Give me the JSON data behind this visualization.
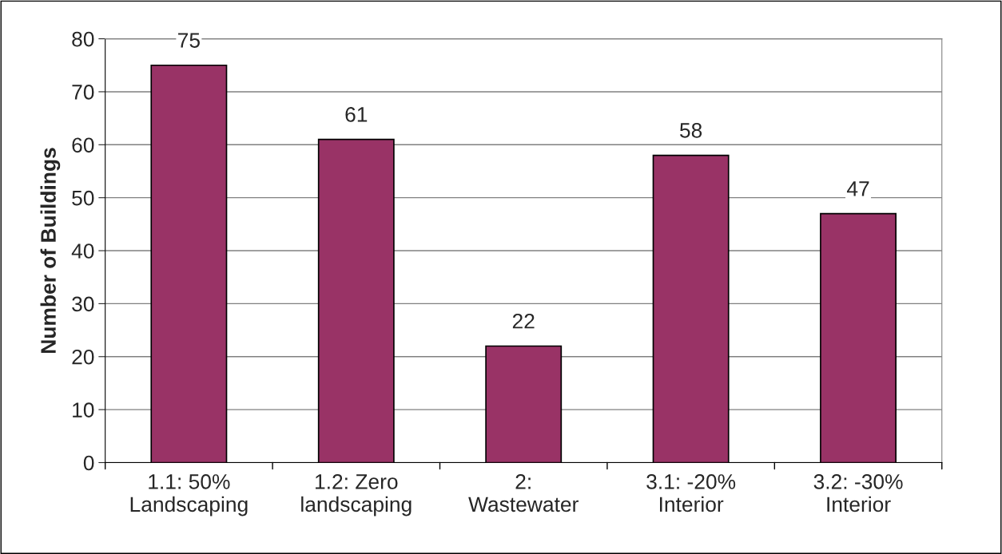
{
  "chart_data": {
    "type": "bar",
    "ylabel": "Number of Buildings",
    "categories": [
      "1.1: 50%\nLandscaping",
      "1.2: Zero\nlandscaping",
      "2:\nWastewater",
      "3.1: -20%\nInterior",
      "3.2: -30%\nInterior"
    ],
    "values": [
      75,
      61,
      22,
      58,
      47
    ],
    "color": "#993366",
    "ylim": [
      0,
      80
    ],
    "yticks": [
      0,
      10,
      20,
      30,
      40,
      50,
      60,
      70,
      80
    ],
    "grid": "y",
    "data_labels": true
  }
}
